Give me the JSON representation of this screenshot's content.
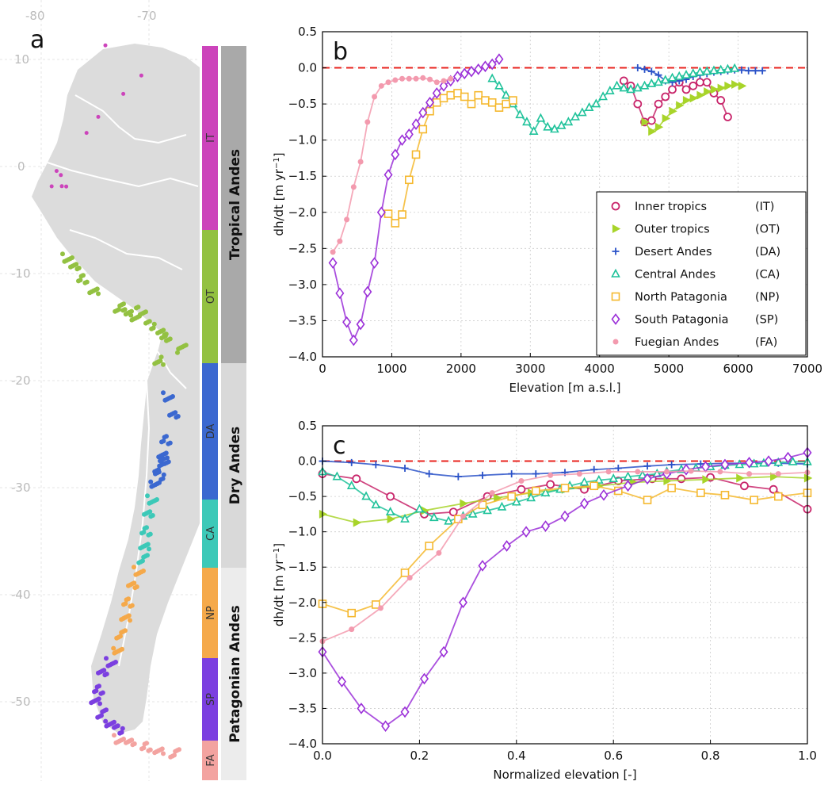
{
  "panel_a": {
    "label": "a",
    "lon_ticks": [
      "-80",
      "-70"
    ],
    "lat_ticks": [
      "10",
      "0",
      "-10",
      "-20",
      "-30",
      "-40",
      "-50"
    ],
    "subregions": [
      {
        "code": "IT",
        "color": "#cc44bb"
      },
      {
        "code": "OT",
        "color": "#93c142"
      },
      {
        "code": "DA",
        "color": "#3b68d0"
      },
      {
        "code": "CA",
        "color": "#3cc9b8"
      },
      {
        "code": "NP",
        "color": "#f5a94a"
      },
      {
        "code": "SP",
        "color": "#7b3fe0"
      },
      {
        "code": "FA",
        "color": "#f3a3a0"
      }
    ],
    "groups": [
      "Tropical Andes",
      "Dry Andes",
      "Patagonian Andes"
    ]
  },
  "chart_data": [
    {
      "type": "line",
      "panel_label": "b",
      "xlabel": "Elevation [m a.s.l.]",
      "ylabel_main": "dh/dt [m yr",
      "ylabel_sup": "−1",
      "ylabel_end": "]",
      "xlim": [
        0,
        7000
      ],
      "ylim": [
        -4.0,
        0.5
      ],
      "xticks": [
        "0",
        "1000",
        "2000",
        "3000",
        "4000",
        "5000",
        "6000",
        "7000"
      ],
      "yticks": [
        "0.5",
        "0.0",
        "−0.5",
        "−1.0",
        "−1.5",
        "−2.0",
        "−2.5",
        "−3.0",
        "−3.5",
        "−4.0"
      ],
      "grid": true,
      "legend": "bottom-right",
      "reference_line": 0,
      "series": [
        {
          "name": "Inner tropics",
          "code": "(IT)",
          "marker": "circle",
          "color": "#c8246a",
          "x": [
            4350,
            4450,
            4550,
            4650,
            4750,
            4850,
            4950,
            5050,
            5150,
            5250,
            5350,
            5450,
            5550,
            5650,
            5750,
            5850
          ],
          "y": [
            -0.18,
            -0.25,
            -0.5,
            -0.75,
            -0.73,
            -0.5,
            -0.4,
            -0.3,
            -0.2,
            -0.3,
            -0.25,
            -0.2,
            -0.2,
            -0.35,
            -0.45,
            -0.68
          ]
        },
        {
          "name": "Outer tropics",
          "code": "(OT)",
          "marker": "triangle-right",
          "color": "#a8d42a",
          "x": [
            4650,
            4750,
            4850,
            4950,
            5050,
            5150,
            5250,
            5350,
            5450,
            5550,
            5650,
            5750,
            5850,
            5950,
            6050
          ],
          "y": [
            -0.75,
            -0.88,
            -0.82,
            -0.7,
            -0.6,
            -0.52,
            -0.45,
            -0.42,
            -0.38,
            -0.33,
            -0.3,
            -0.28,
            -0.25,
            -0.23,
            -0.25
          ]
        },
        {
          "name": "Desert Andes",
          "code": "(DA)",
          "marker": "plus",
          "color": "#2a52c8",
          "x": [
            4550,
            4650,
            4750,
            4850,
            4950,
            5050,
            5150,
            5250,
            5350,
            5450,
            5550,
            5650,
            5750,
            5850,
            5950,
            6050,
            6150,
            6250,
            6350
          ],
          "y": [
            0.0,
            -0.02,
            -0.05,
            -0.1,
            -0.18,
            -0.2,
            -0.18,
            -0.16,
            -0.12,
            -0.1,
            -0.08,
            -0.06,
            -0.05,
            -0.04,
            -0.03,
            -0.03,
            -0.04,
            -0.04,
            -0.04
          ]
        },
        {
          "name": "Central Andes",
          "code": "(CA)",
          "marker": "triangle-up",
          "color": "#1fc29a",
          "x": [
            2450,
            2550,
            2650,
            2750,
            2850,
            2950,
            3050,
            3150,
            3250,
            3350,
            3450,
            3550,
            3650,
            3750,
            3850,
            3950,
            4050,
            4150,
            4250,
            4350,
            4450,
            4550,
            4650,
            4750,
            4850,
            4950,
            5050,
            5150,
            5250,
            5350,
            5450,
            5550,
            5650,
            5750,
            5850,
            5950
          ],
          "y": [
            -0.15,
            -0.25,
            -0.38,
            -0.5,
            -0.65,
            -0.75,
            -0.88,
            -0.7,
            -0.82,
            -0.85,
            -0.8,
            -0.75,
            -0.68,
            -0.62,
            -0.55,
            -0.5,
            -0.4,
            -0.32,
            -0.25,
            -0.28,
            -0.3,
            -0.28,
            -0.25,
            -0.22,
            -0.2,
            -0.17,
            -0.14,
            -0.12,
            -0.1,
            -0.08,
            -0.06,
            -0.05,
            -0.04,
            -0.03,
            -0.02,
            -0.01
          ]
        },
        {
          "name": "North Patagonia",
          "code": "(NP)",
          "marker": "square",
          "color": "#f5b82e",
          "x": [
            950,
            1050,
            1150,
            1250,
            1350,
            1450,
            1550,
            1650,
            1750,
            1850,
            1950,
            2050,
            2150,
            2250,
            2350,
            2450,
            2550,
            2650,
            2750
          ],
          "y": [
            -2.02,
            -2.15,
            -2.03,
            -1.55,
            -1.2,
            -0.85,
            -0.6,
            -0.48,
            -0.42,
            -0.38,
            -0.35,
            -0.4,
            -0.5,
            -0.38,
            -0.45,
            -0.48,
            -0.55,
            -0.5,
            -0.45
          ]
        },
        {
          "name": "South Patagonia",
          "code": "(SP)",
          "marker": "diamond",
          "color": "#9b30d8",
          "x": [
            150,
            250,
            350,
            450,
            550,
            650,
            750,
            850,
            950,
            1050,
            1150,
            1250,
            1350,
            1450,
            1550,
            1650,
            1750,
            1850,
            1950,
            2050,
            2150,
            2250,
            2350,
            2450,
            2550
          ],
          "y": [
            -2.7,
            -3.12,
            -3.52,
            -3.77,
            -3.55,
            -3.1,
            -2.7,
            -2.0,
            -1.48,
            -1.2,
            -1.0,
            -0.92,
            -0.78,
            -0.62,
            -0.48,
            -0.35,
            -0.25,
            -0.18,
            -0.12,
            -0.08,
            -0.05,
            -0.02,
            0.02,
            0.05,
            0.12
          ]
        },
        {
          "name": "Fuegian Andes",
          "code": "(FA)",
          "marker": "dot",
          "color": "#f39aae",
          "x": [
            150,
            250,
            350,
            450,
            550,
            650,
            750,
            850,
            950,
            1050,
            1150,
            1250,
            1350,
            1450,
            1550,
            1650,
            1750,
            1850
          ],
          "y": [
            -2.55,
            -2.4,
            -2.1,
            -1.65,
            -1.3,
            -0.75,
            -0.4,
            -0.25,
            -0.2,
            -0.17,
            -0.15,
            -0.15,
            -0.15,
            -0.14,
            -0.16,
            -0.2,
            -0.18,
            -0.15
          ]
        }
      ]
    },
    {
      "type": "line",
      "panel_label": "c",
      "xlabel": "Normalized elevation [-]",
      "ylabel_main": "dh/dt [m yr",
      "ylabel_sup": "−1",
      "ylabel_end": "]",
      "xlim": [
        0.0,
        1.0
      ],
      "ylim": [
        -4.0,
        0.5
      ],
      "xticks": [
        "0.0",
        "0.2",
        "0.4",
        "0.6",
        "0.8",
        "1.0"
      ],
      "yticks": [
        "0.5",
        "0.0",
        "−0.5",
        "−1.0",
        "−1.5",
        "−2.0",
        "−2.5",
        "−3.0",
        "−3.5",
        "−4.0"
      ],
      "grid": true,
      "reference_line": 0,
      "series": [
        {
          "code": "IT",
          "marker": "circle",
          "color": "#c8246a",
          "x": [
            0.0,
            0.07,
            0.14,
            0.21,
            0.27,
            0.34,
            0.41,
            0.47,
            0.54,
            0.61,
            0.68,
            0.74,
            0.8,
            0.87,
            0.93,
            1.0
          ],
          "y": [
            -0.18,
            -0.25,
            -0.5,
            -0.75,
            -0.72,
            -0.5,
            -0.4,
            -0.33,
            -0.4,
            -0.28,
            -0.25,
            -0.25,
            -0.23,
            -0.35,
            -0.4,
            -0.68
          ]
        },
        {
          "code": "OT",
          "marker": "triangle-right",
          "color": "#a8d42a",
          "x": [
            0.0,
            0.07,
            0.14,
            0.21,
            0.29,
            0.36,
            0.43,
            0.5,
            0.57,
            0.64,
            0.71,
            0.79,
            0.86,
            0.93,
            1.0
          ],
          "y": [
            -0.75,
            -0.87,
            -0.82,
            -0.7,
            -0.6,
            -0.52,
            -0.45,
            -0.4,
            -0.35,
            -0.3,
            -0.28,
            -0.26,
            -0.24,
            -0.22,
            -0.24
          ]
        },
        {
          "code": "DA",
          "marker": "plus",
          "color": "#2a52c8",
          "x": [
            0.0,
            0.06,
            0.11,
            0.17,
            0.22,
            0.28,
            0.33,
            0.39,
            0.44,
            0.5,
            0.56,
            0.61,
            0.67,
            0.72,
            0.78,
            0.83,
            0.89,
            0.94,
            1.0
          ],
          "y": [
            0.0,
            -0.02,
            -0.05,
            -0.1,
            -0.18,
            -0.22,
            -0.2,
            -0.18,
            -0.18,
            -0.16,
            -0.12,
            -0.1,
            -0.07,
            -0.05,
            -0.04,
            -0.03,
            -0.03,
            -0.03,
            -0.04
          ]
        },
        {
          "code": "CA",
          "marker": "triangle-up",
          "color": "#1fc29a",
          "x": [
            0.0,
            0.03,
            0.06,
            0.09,
            0.11,
            0.14,
            0.17,
            0.2,
            0.23,
            0.26,
            0.29,
            0.31,
            0.34,
            0.37,
            0.4,
            0.43,
            0.46,
            0.49,
            0.51,
            0.54,
            0.57,
            0.6,
            0.63,
            0.66,
            0.69,
            0.71,
            0.74,
            0.77,
            0.8,
            0.83,
            0.86,
            0.89,
            0.91,
            0.94,
            0.97,
            1.0
          ],
          "y": [
            -0.15,
            -0.22,
            -0.35,
            -0.5,
            -0.62,
            -0.72,
            -0.82,
            -0.68,
            -0.8,
            -0.85,
            -0.78,
            -0.75,
            -0.7,
            -0.65,
            -0.58,
            -0.52,
            -0.45,
            -0.4,
            -0.35,
            -0.3,
            -0.27,
            -0.25,
            -0.22,
            -0.2,
            -0.18,
            -0.15,
            -0.12,
            -0.1,
            -0.08,
            -0.06,
            -0.05,
            -0.04,
            -0.03,
            -0.02,
            -0.01,
            -0.01
          ]
        },
        {
          "code": "NP",
          "marker": "square",
          "color": "#f5b82e",
          "x": [
            0.0,
            0.06,
            0.11,
            0.17,
            0.22,
            0.28,
            0.33,
            0.39,
            0.44,
            0.5,
            0.56,
            0.61,
            0.67,
            0.72,
            0.78,
            0.83,
            0.89,
            0.94,
            1.0
          ],
          "y": [
            -2.02,
            -2.15,
            -2.03,
            -1.58,
            -1.2,
            -0.82,
            -0.62,
            -0.5,
            -0.42,
            -0.38,
            -0.35,
            -0.42,
            -0.55,
            -0.38,
            -0.45,
            -0.48,
            -0.55,
            -0.5,
            -0.45
          ]
        },
        {
          "code": "SP",
          "marker": "diamond",
          "color": "#9b30d8",
          "x": [
            0.0,
            0.04,
            0.08,
            0.13,
            0.17,
            0.21,
            0.25,
            0.29,
            0.33,
            0.38,
            0.42,
            0.46,
            0.5,
            0.54,
            0.58,
            0.63,
            0.67,
            0.71,
            0.75,
            0.79,
            0.83,
            0.88,
            0.92,
            0.96,
            1.0
          ],
          "y": [
            -2.7,
            -3.12,
            -3.5,
            -3.75,
            -3.55,
            -3.08,
            -2.7,
            -2.0,
            -1.48,
            -1.2,
            -1.0,
            -0.92,
            -0.78,
            -0.6,
            -0.48,
            -0.35,
            -0.25,
            -0.18,
            -0.12,
            -0.08,
            -0.05,
            -0.02,
            0.0,
            0.05,
            0.12
          ]
        },
        {
          "code": "FA",
          "marker": "dot",
          "color": "#f39aae",
          "x": [
            0.0,
            0.06,
            0.12,
            0.18,
            0.24,
            0.29,
            0.35,
            0.41,
            0.47,
            0.53,
            0.59,
            0.65,
            0.71,
            0.76,
            0.82,
            0.88,
            0.94,
            1.0
          ],
          "y": [
            -2.55,
            -2.38,
            -2.08,
            -1.65,
            -1.3,
            -0.78,
            -0.45,
            -0.28,
            -0.2,
            -0.18,
            -0.15,
            -0.15,
            -0.15,
            -0.14,
            -0.15,
            -0.18,
            -0.18,
            -0.16
          ]
        }
      ]
    }
  ]
}
